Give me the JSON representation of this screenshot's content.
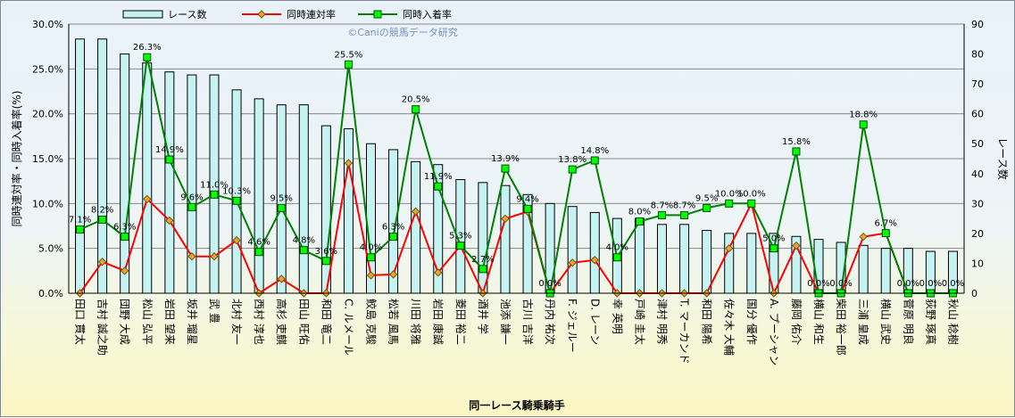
{
  "chart_data": {
    "type": "bar",
    "watermark": "©Caniの競馬データ研究",
    "xlabel": "同一レース騎乗騎手",
    "ylabel_left": "同時連対率・同時入着率(%)",
    "ylabel_right": "レース数",
    "y_left": {
      "ylim": [
        0,
        30
      ],
      "ticks": [
        "0.0%",
        "5.0%",
        "10.0%",
        "15.0%",
        "20.0%",
        "25.0%",
        "30.0%"
      ]
    },
    "y_right": {
      "ylim": [
        0,
        90
      ],
      "ticks": [
        "0",
        "10",
        "20",
        "30",
        "40",
        "50",
        "60",
        "70",
        "80",
        "90"
      ]
    },
    "grid": true,
    "legend_position": "top",
    "categories": [
      "田口 貫太",
      "吉村 誠之助",
      "団野 大成",
      "松山 弘平",
      "岩田 望来",
      "坂井 瑠星",
      "武 豊",
      "北村 友一",
      "西村 淳也",
      "高杉 吏麒",
      "田山 旺佑",
      "和田 竜二",
      "C. ルメール",
      "鮫島 克駿",
      "松若 風馬",
      "川田 将雅",
      "岩田 康誠",
      "菱田 裕二",
      "酒井 学",
      "池添 謙一",
      "古川 吉洋",
      "丹内 祐次",
      "F. ジェルー",
      "D. レーン",
      "幸 英明",
      "戸崎 圭太",
      "津村 明秀",
      "T. マーカンド",
      "和田 陽希",
      "佐々木 大輔",
      "国分 優作",
      "A. プーシャン",
      "藤岡 佑介",
      "横山 和生",
      "柴田 裕一郎",
      "三浦 皇成",
      "横山 武史",
      "菅原 明良",
      "荻野 琢真",
      "秋山 稔樹"
    ],
    "series": [
      {
        "name": "レース数",
        "type": "bar",
        "axis": "right",
        "color": "#c6f2f2",
        "values": [
          85,
          85,
          80,
          77,
          74,
          73,
          73,
          68,
          65,
          63,
          63,
          56,
          55,
          50,
          48,
          44,
          43,
          38,
          37,
          36,
          33,
          30,
          29,
          27,
          25,
          25,
          23,
          23,
          21,
          20,
          20,
          20,
          19,
          18,
          17,
          16,
          15,
          15,
          14,
          14
        ]
      },
      {
        "name": "同時連対率",
        "type": "line",
        "axis": "left",
        "color": "#ff0000",
        "marker_color": "#e8a23a",
        "values": [
          0,
          3.5,
          2.5,
          10.5,
          8.1,
          4.1,
          4.1,
          5.9,
          0,
          1.6,
          0,
          0,
          14.5,
          2.0,
          2.1,
          9.1,
          2.3,
          5.3,
          0,
          8.3,
          9.1,
          0,
          3.4,
          3.7,
          0,
          0,
          0,
          0,
          0,
          5.0,
          10.0,
          0,
          5.3,
          0,
          0,
          6.3,
          6.7,
          0,
          0,
          0
        ]
      },
      {
        "name": "同時入着率",
        "type": "line",
        "axis": "left",
        "color": "#008000",
        "marker_color": "#00ff00",
        "values": [
          7.1,
          8.2,
          6.3,
          26.3,
          14.9,
          9.6,
          11.0,
          10.3,
          4.6,
          9.5,
          4.8,
          3.6,
          25.5,
          4.0,
          6.3,
          20.5,
          11.9,
          5.3,
          2.7,
          13.9,
          9.4,
          0,
          13.8,
          14.8,
          4.0,
          8.0,
          8.7,
          8.7,
          9.5,
          10.0,
          10.0,
          5.0,
          15.8,
          0,
          0,
          18.8,
          6.7,
          0,
          0,
          0
        ]
      }
    ],
    "data_labels": [
      "7.1%",
      "8.2%",
      "6.3%",
      "26.3%",
      "14.9%",
      "9.6%",
      "11.0%",
      "10.3%",
      "4.6%",
      "9.5%",
      "4.8%",
      "3.6%",
      "25.5%",
      "4.0%",
      "6.3%",
      "20.5%",
      "11.9%",
      "5.3%",
      "2.7%",
      "13.9%",
      "9.4%",
      "0.0%",
      "13.8%",
      "14.8%",
      "4.0%",
      "8.0%",
      "8.7%",
      "8.7%",
      "9.5%",
      "10.0%",
      "10.0%",
      "5.0%",
      "15.8%",
      "0.0%",
      "0.0%",
      "18.8%",
      "6.7%",
      "0.0%",
      "0.0%",
      "0.0%"
    ]
  }
}
